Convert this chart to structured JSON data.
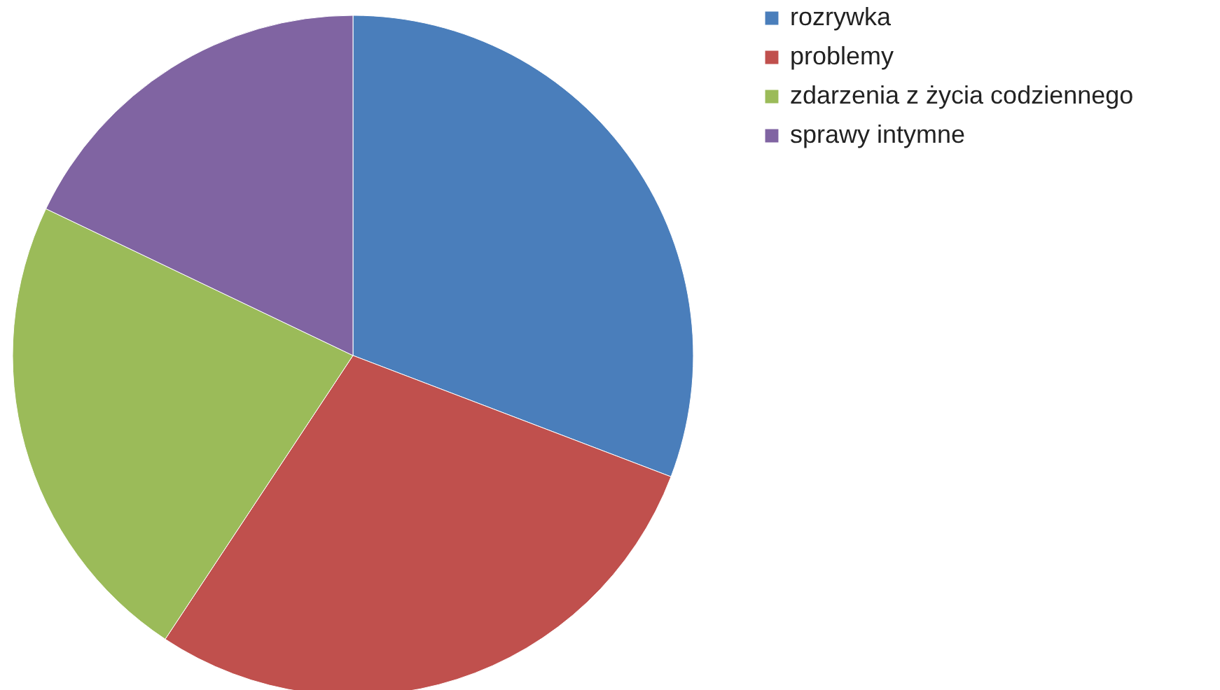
{
  "chart_data": {
    "type": "pie",
    "categories": [
      "rozrywka",
      "problemy",
      "zdarzenia z życia codziennego",
      "sprawy intymne"
    ],
    "values": [
      30.8,
      28.5,
      22.8,
      17.9
    ],
    "colors": [
      "#4a7ebb",
      "#c0504d",
      "#9bbb59",
      "#8064a2"
    ],
    "legend": "right"
  }
}
